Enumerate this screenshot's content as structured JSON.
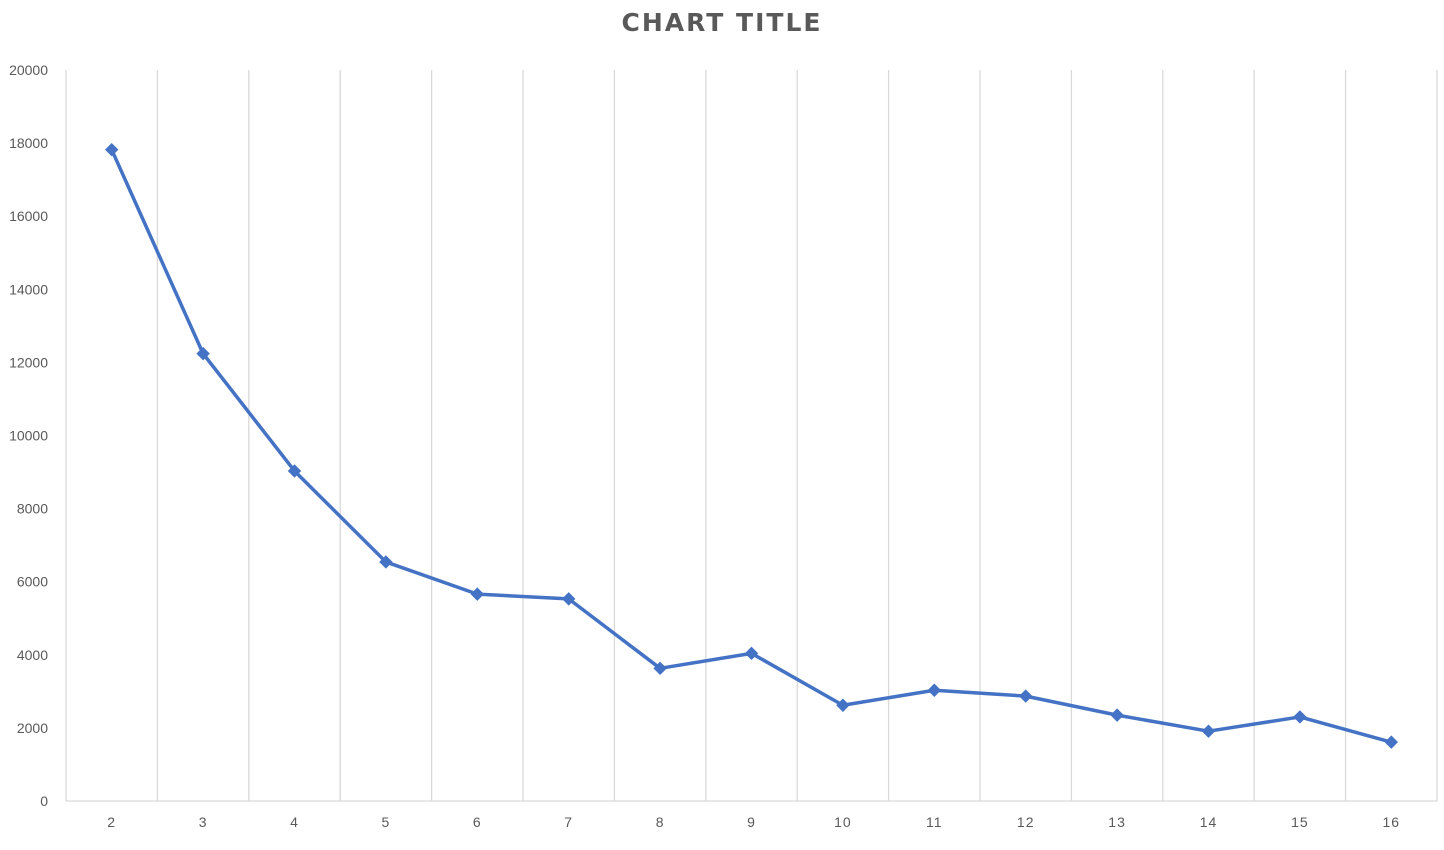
{
  "chart_data": {
    "type": "line",
    "title": "CHART TITLE",
    "xlabel": "",
    "ylabel": "",
    "categories": [
      "2",
      "3",
      "4",
      "5",
      "6",
      "7",
      "8",
      "9",
      "10",
      "11",
      "12",
      "13",
      "14",
      "15",
      "16"
    ],
    "series": [
      {
        "values": [
          17820,
          12240,
          9030,
          6540,
          5660,
          5530,
          3630,
          4040,
          2620,
          3030,
          2870,
          2350,
          1910,
          2300,
          1610
        ],
        "color": "#4472C4",
        "marker": "diamond"
      }
    ],
    "ylim": [
      0,
      20000
    ],
    "y_ticks": [
      "0",
      "2000",
      "4000",
      "6000",
      "8000",
      "10000",
      "12000",
      "14000",
      "16000",
      "18000",
      "20000"
    ],
    "grid": "vertical",
    "legend": "none"
  }
}
